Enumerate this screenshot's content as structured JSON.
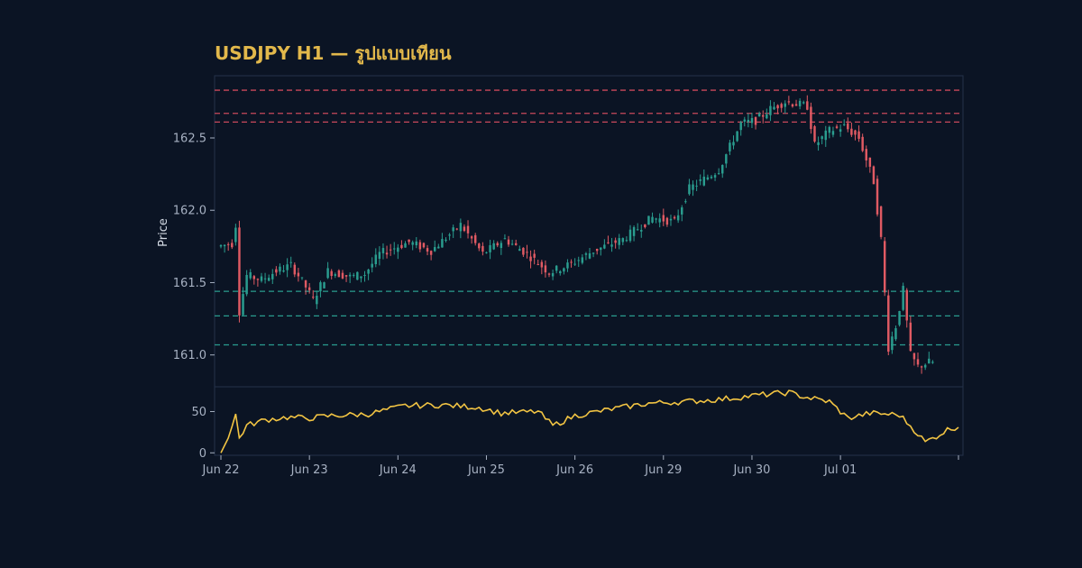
{
  "chart_data": {
    "type": "candlestick",
    "title": "USDJPY H1 — รูปแบบเทียน",
    "ylabel": "Price",
    "price_ylim": [
      160.78,
      162.93
    ],
    "price_yticks": [
      "161.0",
      "161.5",
      "162.0",
      "162.5"
    ],
    "price_ytick_values": [
      161.0,
      161.5,
      162.0,
      162.5
    ],
    "indicator_ylim": [
      -3,
      80
    ],
    "indicator_yticks": [
      "0",
      "50"
    ],
    "indicator_ytick_values": [
      0,
      50
    ],
    "x_start": "Jun 22",
    "x_tick_labels": [
      "Jun 22",
      "Jun 23",
      "Jun 24",
      "Jun 25",
      "Jun 26",
      "Jun 29",
      "Jun 30",
      "Jul 01"
    ],
    "x_tick_positions": [
      0,
      24,
      48,
      72,
      96,
      120,
      144,
      168
    ],
    "resistance_levels": [
      162.83,
      162.67,
      162.61
    ],
    "support_levels": [
      161.44,
      161.27,
      161.07
    ],
    "colors": {
      "background": "#0b1424",
      "up": "#2a9d8f",
      "down": "#e05a63",
      "indicator": "#f2c443",
      "resistance": "#c9485b",
      "support": "#2a9d8f",
      "frame": "#24324a",
      "title": "#e2b84b"
    },
    "anchors": [
      [
        0,
        161.75
      ],
      [
        4,
        161.77
      ],
      [
        5,
        161.9
      ],
      [
        6,
        161.3
      ],
      [
        8,
        161.55
      ],
      [
        12,
        161.52
      ],
      [
        16,
        161.58
      ],
      [
        20,
        161.62
      ],
      [
        22,
        161.55
      ],
      [
        24,
        161.47
      ],
      [
        26,
        161.38
      ],
      [
        30,
        161.58
      ],
      [
        36,
        161.54
      ],
      [
        40,
        161.56
      ],
      [
        44,
        161.7
      ],
      [
        52,
        161.78
      ],
      [
        58,
        161.72
      ],
      [
        66,
        161.9
      ],
      [
        72,
        161.7
      ],
      [
        78,
        161.8
      ],
      [
        84,
        161.7
      ],
      [
        90,
        161.57
      ],
      [
        96,
        161.63
      ],
      [
        102,
        161.72
      ],
      [
        110,
        161.8
      ],
      [
        118,
        161.95
      ],
      [
        124,
        161.92
      ],
      [
        128,
        162.15
      ],
      [
        136,
        162.28
      ],
      [
        142,
        162.6
      ],
      [
        146,
        162.62
      ],
      [
        150,
        162.7
      ],
      [
        154,
        162.75
      ],
      [
        160,
        162.72
      ],
      [
        162,
        162.45
      ],
      [
        166,
        162.55
      ],
      [
        170,
        162.58
      ],
      [
        174,
        162.5
      ],
      [
        178,
        162.2
      ],
      [
        180,
        161.8
      ],
      [
        182,
        161.05
      ],
      [
        184,
        161.2
      ],
      [
        186,
        161.45
      ],
      [
        188,
        161.0
      ],
      [
        190,
        160.92
      ],
      [
        193,
        160.95
      ]
    ],
    "indicator_anchors": [
      [
        0,
        0
      ],
      [
        2,
        18
      ],
      [
        4,
        46
      ],
      [
        5,
        18
      ],
      [
        7,
        33
      ],
      [
        12,
        40
      ],
      [
        18,
        43
      ],
      [
        24,
        42
      ],
      [
        30,
        45
      ],
      [
        40,
        47
      ],
      [
        50,
        57
      ],
      [
        60,
        58
      ],
      [
        70,
        55
      ],
      [
        76,
        48
      ],
      [
        86,
        50
      ],
      [
        90,
        33
      ],
      [
        96,
        45
      ],
      [
        106,
        53
      ],
      [
        116,
        60
      ],
      [
        126,
        62
      ],
      [
        136,
        65
      ],
      [
        146,
        70
      ],
      [
        154,
        73
      ],
      [
        158,
        68
      ],
      [
        165,
        62
      ],
      [
        170,
        42
      ],
      [
        176,
        48
      ],
      [
        184,
        46
      ],
      [
        188,
        28
      ],
      [
        191,
        13
      ],
      [
        194,
        20
      ],
      [
        197,
        28
      ],
      [
        200,
        32
      ]
    ]
  }
}
